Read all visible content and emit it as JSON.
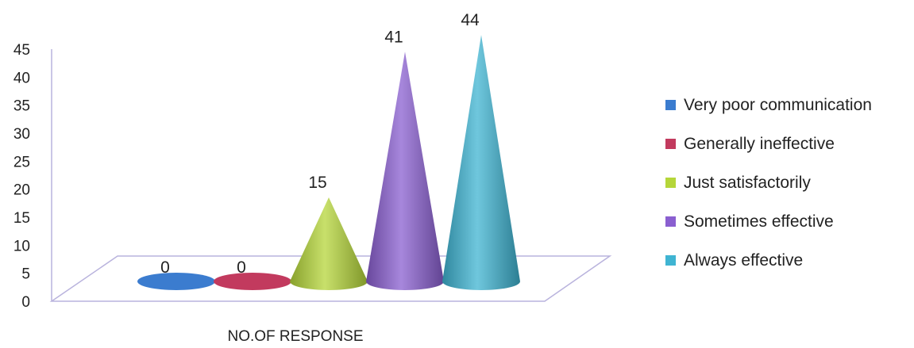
{
  "chart_data": {
    "type": "bar",
    "style": "3d-cone",
    "categories": [
      "NO.OF RESPONSE"
    ],
    "xlabel": "NO.OF RESPONSE",
    "ylabel": "",
    "ylim": [
      0,
      45
    ],
    "yticks": [
      "0",
      "5",
      "10",
      "15",
      "20",
      "25",
      "30",
      "35",
      "40",
      "45"
    ],
    "grid": false,
    "legend_position": "right",
    "series": [
      {
        "name": "Very poor communication",
        "values": [
          0
        ],
        "label": "0",
        "color": "#3b7ccf"
      },
      {
        "name": "Generally ineffective",
        "values": [
          0
        ],
        "label": "0",
        "color": "#c23a5e"
      },
      {
        "name": "Just satisfactorily",
        "values": [
          15
        ],
        "label": "15",
        "color": "#b5d63a"
      },
      {
        "name": "Sometimes effective",
        "values": [
          41
        ],
        "label": "41",
        "color": "#8a5fd0"
      },
      {
        "name": "Always effective",
        "values": [
          44
        ],
        "label": "44",
        "color": "#3fb4d2"
      }
    ]
  }
}
